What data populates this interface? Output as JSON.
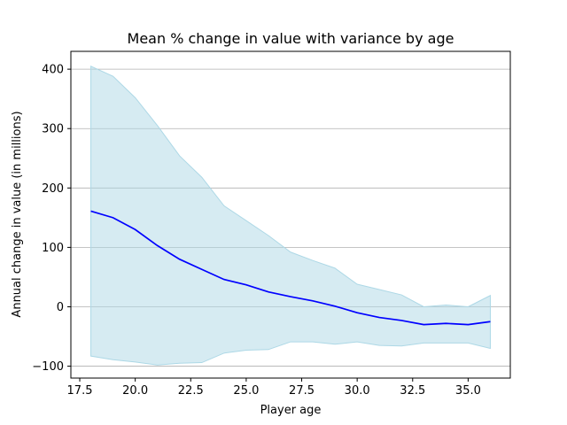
{
  "chart_data": {
    "type": "line",
    "title": "Mean % change in value with variance by age",
    "xlabel": "Player age",
    "ylabel": "Annual change in value (in millions)",
    "xlim": [
      17.1,
      36.9
    ],
    "ylim": [
      -120,
      430
    ],
    "x_ticks": [
      17.5,
      20.0,
      22.5,
      25.0,
      27.5,
      30.0,
      32.5,
      35.0
    ],
    "x_tick_labels": [
      "17.5",
      "20.0",
      "22.5",
      "25.0",
      "27.5",
      "30.0",
      "32.5",
      "35.0"
    ],
    "y_ticks": [
      -100,
      0,
      100,
      200,
      300,
      400
    ],
    "y_tick_labels": [
      "−100",
      "0",
      "100",
      "200",
      "300",
      "400"
    ],
    "grid": "horizontal",
    "legend": "none",
    "x": [
      18,
      19,
      20,
      21,
      22,
      23,
      24,
      25,
      26,
      27,
      28,
      29,
      30,
      31,
      32,
      33,
      34,
      35,
      36
    ],
    "series": [
      {
        "values": [
          161,
          150,
          130,
          103,
          80,
          63,
          46,
          37,
          25,
          17,
          10,
          1,
          -10,
          -18,
          -23,
          -30,
          -28,
          -30,
          -25
        ],
        "color": "#0000ff"
      }
    ],
    "band": {
      "upper": [
        405,
        388,
        352,
        305,
        254,
        218,
        170,
        145,
        120,
        92,
        78,
        65,
        38,
        29,
        20,
        0,
        3,
        0,
        19
      ],
      "lower": [
        -83,
        -89,
        -93,
        -98,
        -95,
        -94,
        -78,
        -73,
        -72,
        -59,
        -59,
        -63,
        -59,
        -65,
        -66,
        -61,
        -61,
        -61,
        -70
      ],
      "color": "#add8e6"
    }
  }
}
